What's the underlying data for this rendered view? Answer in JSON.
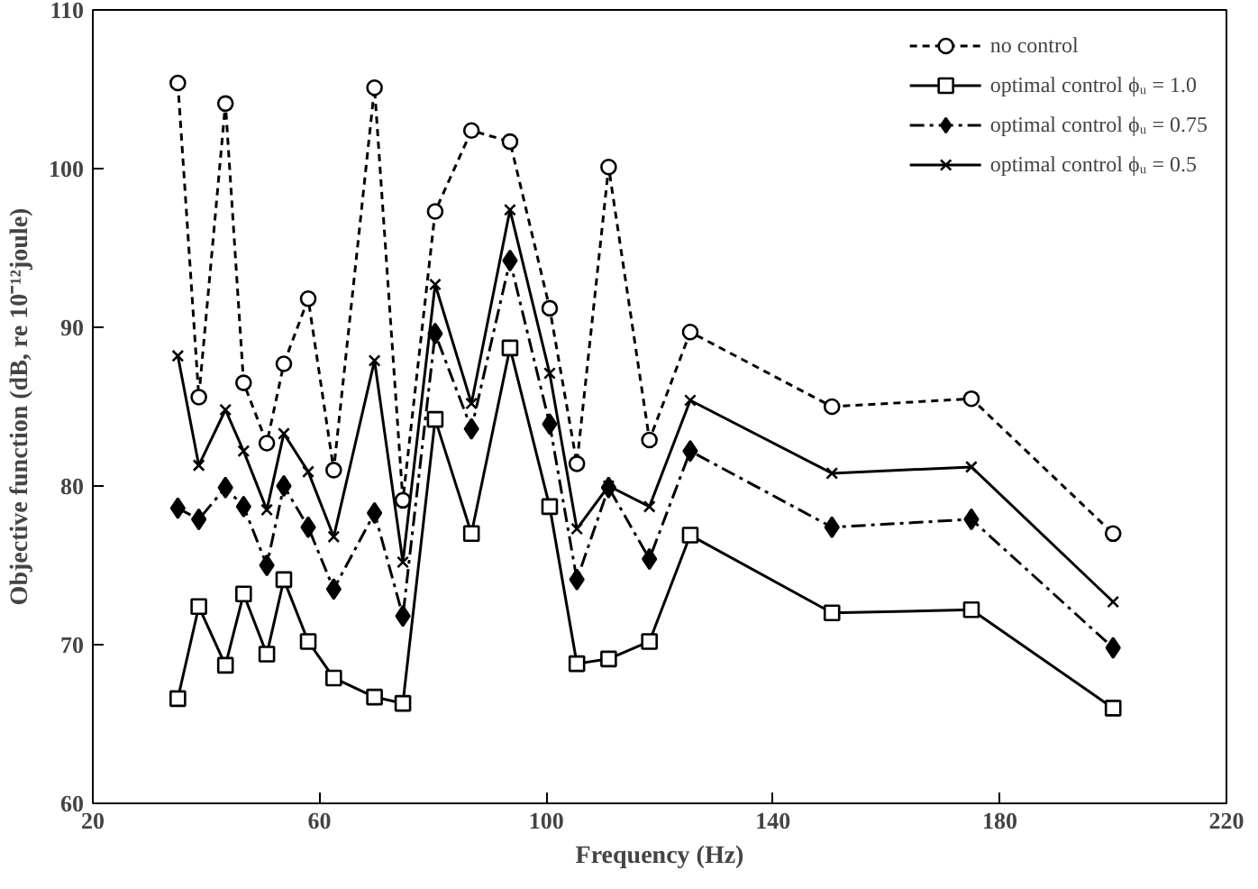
{
  "chart_data": {
    "type": "line",
    "xlabel": "Frequency (Hz)",
    "ylabel": "Objective function (dB, re 10⁻¹²joule)",
    "xlim": [
      20,
      220
    ],
    "xticks": [
      20,
      60,
      100,
      140,
      180,
      220
    ],
    "ylim": [
      60,
      110
    ],
    "yticks": [
      60,
      70,
      80,
      90,
      100,
      110
    ],
    "x": [
      35,
      38.7,
      43.4,
      46.6,
      50.7,
      53.7,
      58,
      62.5,
      69.7,
      74.7,
      80.4,
      86.8,
      93.6,
      100.6,
      105.4,
      111,
      118.2,
      125.4,
      150.4,
      175,
      200
    ],
    "grid": false,
    "legend": "top right",
    "series": [
      {
        "name": "no control",
        "color": "#000000",
        "marker": "circle",
        "line_style": "dashed",
        "values": [
          105.4,
          85.6,
          104.1,
          86.5,
          82.7,
          87.7,
          91.8,
          81.0,
          105.1,
          79.1,
          97.3,
          102.4,
          101.7,
          91.2,
          81.4,
          100.1,
          82.9,
          89.7,
          85.0,
          85.5,
          77.0
        ]
      },
      {
        "name": "optimal control ϕᵤ = 1.0",
        "color": "#000000",
        "marker": "square",
        "line_style": "solid",
        "values": [
          66.6,
          72.4,
          68.7,
          73.2,
          69.4,
          74.1,
          70.2,
          67.9,
          66.7,
          66.3,
          84.2,
          77.0,
          88.7,
          78.7,
          68.8,
          69.1,
          70.2,
          76.9,
          72.0,
          72.2,
          66.0
        ]
      },
      {
        "name": "optimal control ϕᵤ = 0.75",
        "color": "#000000",
        "marker": "diamond",
        "line_style": "dashdot",
        "values": [
          78.6,
          77.9,
          79.9,
          78.7,
          75.0,
          80.0,
          77.4,
          73.5,
          78.3,
          71.8,
          89.6,
          83.6,
          94.2,
          83.9,
          74.1,
          79.9,
          75.4,
          82.2,
          77.4,
          77.9,
          69.8
        ]
      },
      {
        "name": "optimal control ϕᵤ = 0.5",
        "color": "#000000",
        "marker": "cross",
        "line_style": "solid",
        "values": [
          88.2,
          81.3,
          84.8,
          82.2,
          78.5,
          83.3,
          80.9,
          76.8,
          87.9,
          75.2,
          92.7,
          85.2,
          97.4,
          87.1,
          77.3,
          80.0,
          78.7,
          85.4,
          80.8,
          81.2,
          72.7
        ]
      }
    ]
  }
}
